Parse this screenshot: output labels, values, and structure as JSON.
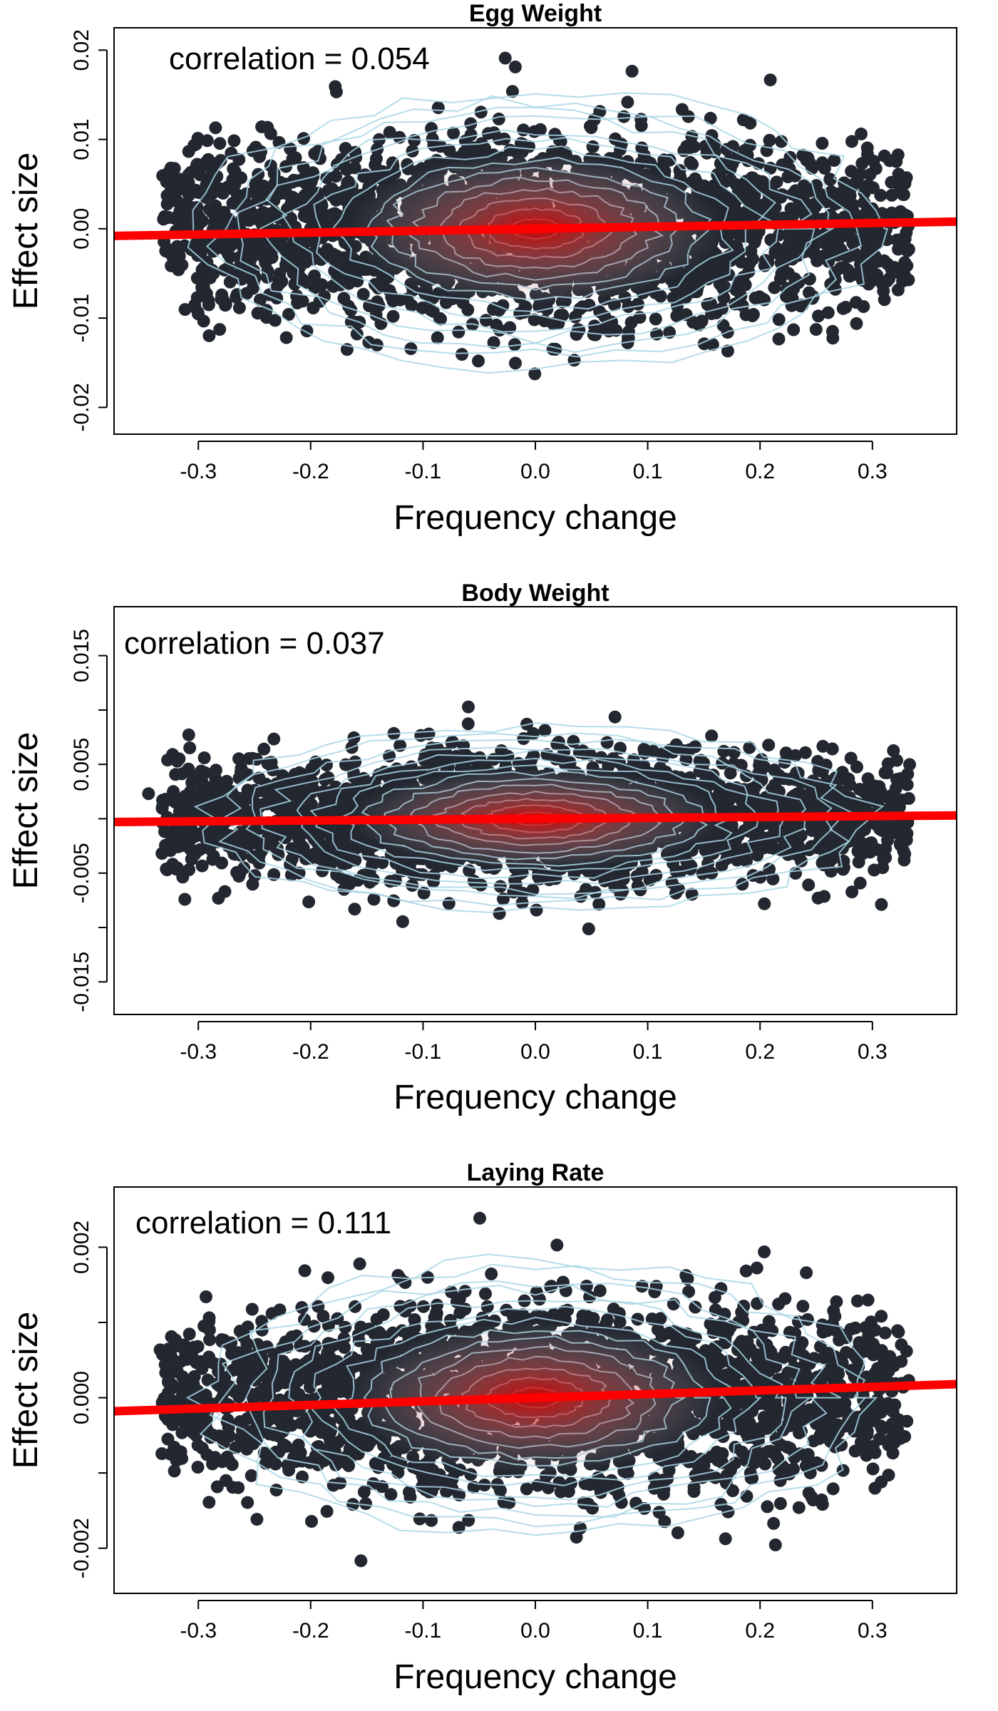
{
  "chart_data": [
    {
      "type": "scatter",
      "title": "Egg Weight",
      "xlabel": "Frequency change",
      "ylabel": "Effect size",
      "annotation": "correlation = 0.054",
      "xlim": [
        -0.375,
        0.375
      ],
      "ylim": [
        -0.023,
        0.0225
      ],
      "xticks": [
        -0.3,
        -0.2,
        -0.1,
        0.0,
        0.1,
        0.2,
        0.3
      ],
      "xtick_labels": [
        "-0.3",
        "-0.2",
        "-0.1",
        "0.0",
        "0.1",
        "0.2",
        "0.3"
      ],
      "yticks": [
        -0.02,
        -0.01,
        0.0,
        0.01,
        0.02
      ],
      "ytick_labels": [
        "-0.02",
        "-0.01",
        "0.00",
        "0.01",
        "0.02"
      ],
      "cloud": {
        "x_sd": 0.12,
        "y_sd": 0.0055,
        "x_extent": 0.35,
        "y_extent": 0.0215
      },
      "fit_line": {
        "x": [
          -0.375,
          0.375
        ],
        "y": [
          -0.0008,
          0.0008
        ]
      },
      "grid": false,
      "legend": "none",
      "colors": {
        "points": "#222730",
        "contours": "#a9d6e5",
        "density": "#d40000",
        "fit": "#ff0000"
      }
    },
    {
      "type": "scatter",
      "title": "Body Weight",
      "xlabel": "Frequency change",
      "ylabel": "Effect size",
      "annotation": "correlation = 0.037",
      "xlim": [
        -0.375,
        0.375
      ],
      "ylim": [
        -0.018,
        0.0195
      ],
      "xticks": [
        -0.3,
        -0.2,
        -0.1,
        0.0,
        0.1,
        0.2,
        0.3
      ],
      "xtick_labels": [
        "-0.3",
        "-0.2",
        "-0.1",
        "0.0",
        "0.1",
        "0.2",
        "0.3"
      ],
      "yticks": [
        -0.015,
        -0.01,
        -0.005,
        0.0,
        0.005,
        0.01,
        0.015
      ],
      "ytick_labels": [
        "-0.015",
        "",
        "-0.005",
        "",
        "0.005",
        "",
        "0.015"
      ],
      "cloud": {
        "x_sd": 0.12,
        "y_sd": 0.003,
        "x_extent": 0.35,
        "y_extent": 0.0175
      },
      "fit_line": {
        "x": [
          -0.375,
          0.375
        ],
        "y": [
          -0.0003,
          0.0003
        ]
      },
      "grid": false,
      "legend": "none",
      "colors": {
        "points": "#222730",
        "contours": "#a9d6e5",
        "density": "#d40000",
        "fit": "#ff0000"
      }
    },
    {
      "type": "scatter",
      "title": "Laying Rate",
      "xlabel": "Frequency change",
      "ylabel": "Effect size",
      "annotation": "correlation = 0.111",
      "xlim": [
        -0.375,
        0.375
      ],
      "ylim": [
        -0.0026,
        0.0028
      ],
      "xticks": [
        -0.3,
        -0.2,
        -0.1,
        0.0,
        0.1,
        0.2,
        0.3
      ],
      "xtick_labels": [
        "-0.3",
        "-0.2",
        "-0.1",
        "0.0",
        "0.1",
        "0.2",
        "0.3"
      ],
      "yticks": [
        -0.002,
        -0.001,
        0.0,
        0.001,
        0.002
      ],
      "ytick_labels": [
        "-0.002",
        "",
        "0.000",
        "",
        "0.002"
      ],
      "cloud": {
        "x_sd": 0.12,
        "y_sd": 0.00065,
        "x_extent": 0.35,
        "y_extent": 0.0025
      },
      "fit_line": {
        "x": [
          -0.375,
          0.375
        ],
        "y": [
          -0.00018,
          0.00018
        ]
      },
      "grid": false,
      "legend": "none",
      "colors": {
        "points": "#222730",
        "contours": "#a9d6e5",
        "density": "#d40000",
        "fit": "#ff0000"
      }
    }
  ]
}
